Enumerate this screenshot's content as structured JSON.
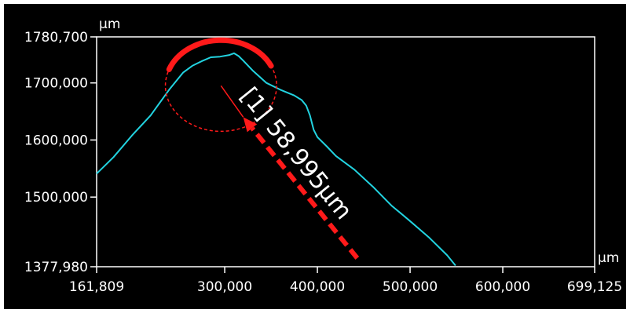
{
  "chart_data": {
    "type": "line",
    "title": "",
    "x_unit": "µm",
    "y_unit": "µm",
    "xlim": [
      161809,
      699125
    ],
    "ylim": [
      1377980,
      1780700
    ],
    "x_ticks": [
      {
        "value": 161809,
        "label": "161,809"
      },
      {
        "value": 300000,
        "label": "300,000"
      },
      {
        "value": 400000,
        "label": "400,000"
      },
      {
        "value": 500000,
        "label": "500,000"
      },
      {
        "value": 600000,
        "label": "600,000"
      },
      {
        "value": 699125,
        "label": "699,125"
      }
    ],
    "y_ticks": [
      {
        "value": 1780700,
        "label": "1780,700"
      },
      {
        "value": 1700000,
        "label": "1700,000"
      },
      {
        "value": 1600000,
        "label": "1600,000"
      },
      {
        "value": 1500000,
        "label": "1500,000"
      },
      {
        "value": 1377980,
        "label": "1377,980"
      }
    ],
    "series": [
      {
        "color": "#22d3e0",
        "x": [
          161809,
          180000,
          200000,
          220000,
          240000,
          255000,
          265000,
          275000,
          285000,
          295000,
          305000,
          310000,
          315000,
          320000,
          330000,
          345000,
          360000,
          375000,
          383000,
          388000,
          392000,
          396000,
          400000,
          410000,
          420000,
          440000,
          460000,
          480000,
          500000,
          520000,
          540000,
          549000
        ],
        "y": [
          1541000,
          1570000,
          1608000,
          1643000,
          1688000,
          1718000,
          1730000,
          1738000,
          1745000,
          1746000,
          1749000,
          1752000,
          1747000,
          1739000,
          1722000,
          1700000,
          1688000,
          1678000,
          1670000,
          1660000,
          1643000,
          1618000,
          1605000,
          1589000,
          1572000,
          1548000,
          1518000,
          1485000,
          1458000,
          1430000,
          1398000,
          1380000
        ]
      }
    ],
    "annotations": {
      "measurement_label": "[1] 58,995µm",
      "arc_color": "#ff1a1a",
      "circle_center": [
        296000,
        1695000
      ],
      "circle_radius_x": 60000,
      "arc_endpoints_x": [
        240000,
        350000
      ],
      "arrow_start": [
        443000,
        1393000
      ],
      "arrow_end": [
        320000,
        1640000
      ],
      "arrow_color": "#ff1a1a"
    }
  }
}
